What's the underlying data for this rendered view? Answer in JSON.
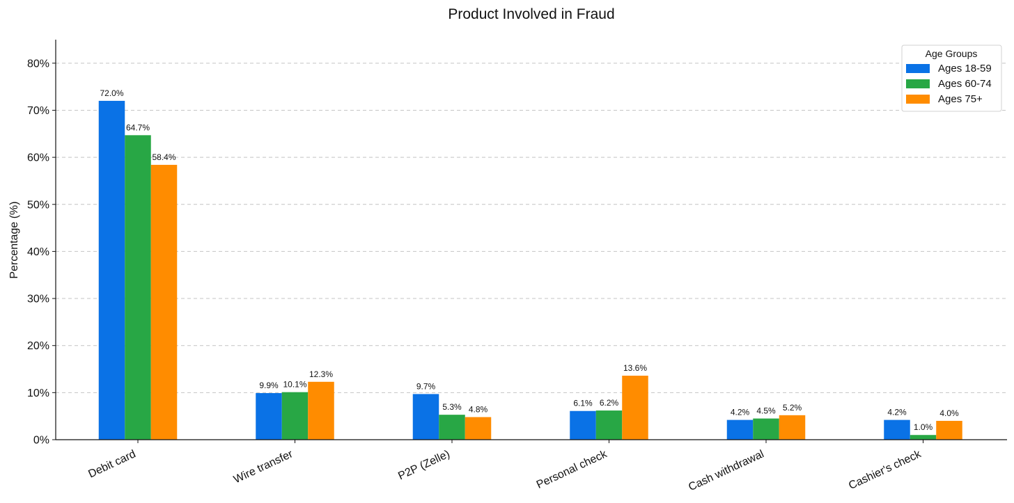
{
  "chart_data": {
    "type": "bar",
    "title": "Product Involved in Fraud",
    "xlabel": "",
    "ylabel": "Percentage (%)",
    "ylim": [
      0,
      85
    ],
    "yticks": [
      "0%",
      "10%",
      "20%",
      "30%",
      "40%",
      "50%",
      "60%",
      "70%",
      "80%"
    ],
    "grid": "y-dashed",
    "legend_title": "Age Groups",
    "legend_position": "top-right",
    "categories": [
      "Debit card",
      "Wire transfer",
      "P2P (Zelle)",
      "Personal check",
      "Cash withdrawal",
      "Cashier's check"
    ],
    "series": [
      {
        "name": "Ages 18-59",
        "color": "#0A72E6",
        "values": [
          72.0,
          9.9,
          9.7,
          6.1,
          4.2,
          4.2
        ],
        "labels": [
          "72.0%",
          "9.9%",
          "9.7%",
          "6.1%",
          "4.2%",
          "4.2%"
        ]
      },
      {
        "name": "Ages 60-74",
        "color": "#28A745",
        "values": [
          64.7,
          10.1,
          5.3,
          6.2,
          4.5,
          1.0
        ],
        "labels": [
          "64.7%",
          "10.1%",
          "5.3%",
          "6.2%",
          "4.5%",
          "1.0%"
        ]
      },
      {
        "name": "Ages 75+",
        "color": "#FF8C00",
        "values": [
          58.4,
          12.3,
          4.8,
          13.6,
          5.2,
          4.0
        ],
        "labels": [
          "58.4%",
          "12.3%",
          "4.8%",
          "13.6%",
          "5.2%",
          "4.0%"
        ]
      }
    ]
  }
}
